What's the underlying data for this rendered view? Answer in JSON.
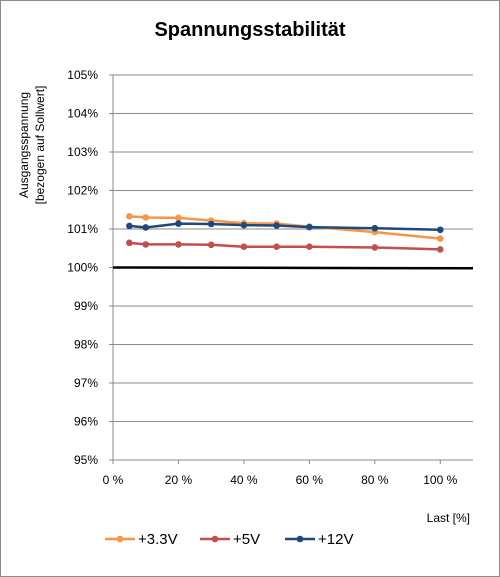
{
  "chart_data": {
    "type": "line",
    "title": "Spannungsstabilität",
    "xlabel": "Last [%]",
    "ylabel_lines": [
      "Ausgangsspannung",
      "[bezogen auf Sollwert]"
    ],
    "xlim": [
      0,
      110
    ],
    "ylim": [
      95,
      105
    ],
    "x_ticks": [
      0,
      20,
      40,
      60,
      80,
      100
    ],
    "x_tick_labels": [
      "0 %",
      "20 %",
      "40 %",
      "60 %",
      "80 %",
      "100 %"
    ],
    "y_ticks": [
      95,
      96,
      97,
      98,
      99,
      100,
      101,
      102,
      103,
      104,
      105
    ],
    "y_tick_labels": [
      "95%",
      "96%",
      "97%",
      "98%",
      "99%",
      "100%",
      "101%",
      "102%",
      "103%",
      "104%",
      "105%"
    ],
    "grid": "horizontal",
    "legend_position": "bottom",
    "reference_line": {
      "y": [
        100,
        99.98
      ],
      "x": [
        0,
        110
      ],
      "color": "#000000"
    },
    "series": [
      {
        "name": "+3.3V",
        "color": "#f79646",
        "x": [
          5,
          10,
          20,
          30,
          40,
          50,
          60,
          80,
          100
        ],
        "y": [
          101.33,
          101.3,
          101.29,
          101.22,
          101.15,
          101.14,
          101.06,
          100.92,
          100.75
        ]
      },
      {
        "name": "+5V",
        "color": "#c0504d",
        "x": [
          5,
          10,
          20,
          30,
          40,
          50,
          60,
          80,
          100
        ],
        "y": [
          100.64,
          100.6,
          100.6,
          100.59,
          100.54,
          100.54,
          100.54,
          100.52,
          100.47
        ]
      },
      {
        "name": "+12V",
        "color": "#1f497d",
        "x": [
          5,
          10,
          20,
          30,
          40,
          50,
          60,
          80,
          100
        ],
        "y": [
          101.08,
          101.04,
          101.14,
          101.13,
          101.1,
          101.09,
          101.05,
          101.02,
          100.98
        ]
      }
    ]
  }
}
